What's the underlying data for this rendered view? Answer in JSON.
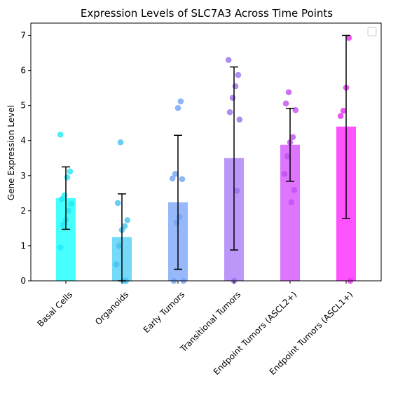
{
  "chart_data": {
    "type": "bar",
    "title": "Expression Levels of SLC7A3 Across Time Points",
    "xlabel": "",
    "ylabel": "Gene Expression Level",
    "ylim": [
      0,
      7.35
    ],
    "yticks": [
      0,
      1,
      2,
      3,
      4,
      5,
      6,
      7
    ],
    "grid": false,
    "legend": "top-right (empty)",
    "categories": [
      "Basal Cells",
      "Organoids",
      "Early Tumors",
      "Transitional Tumors",
      "Endpoint Tumors (ASCL2+)",
      "Endpoint Tumors (ASCL1+)"
    ],
    "colors": [
      "#33ffff",
      "#66d6f6",
      "#8cb0fb",
      "#b38cf7",
      "#d966ff",
      "#ff40ff"
    ],
    "point_colors": [
      "#22e9f6",
      "#44c2ee",
      "#72a3f6",
      "#9870eb",
      "#c24ff0",
      "#ea2ef0"
    ],
    "values": [
      2.36,
      1.25,
      2.24,
      3.5,
      3.88,
      4.4
    ],
    "error": [
      [
        1.47,
        3.25
      ],
      [
        0.0,
        2.48
      ],
      [
        0.33,
        4.15
      ],
      [
        0.88,
        6.1
      ],
      [
        2.84,
        4.92
      ],
      [
        1.78,
        7.0
      ]
    ],
    "points": [
      [
        4.17,
        3.12,
        2.95,
        2.44,
        2.33,
        2.2,
        2.0,
        1.74,
        1.6,
        0.95
      ],
      [
        3.95,
        2.22,
        1.73,
        1.56,
        1.45,
        1.0,
        0.47,
        0.0,
        0.0
      ],
      [
        5.12,
        4.93,
        3.05,
        2.92,
        2.9,
        1.82,
        1.66,
        0.0,
        0.0
      ],
      [
        6.3,
        5.87,
        5.55,
        5.22,
        4.81,
        4.6,
        2.57,
        0.0
      ],
      [
        5.38,
        5.06,
        4.87,
        4.1,
        3.95,
        3.55,
        3.05,
        2.59,
        2.24
      ],
      [
        6.93,
        5.51,
        4.85,
        4.7,
        0.0
      ]
    ]
  }
}
